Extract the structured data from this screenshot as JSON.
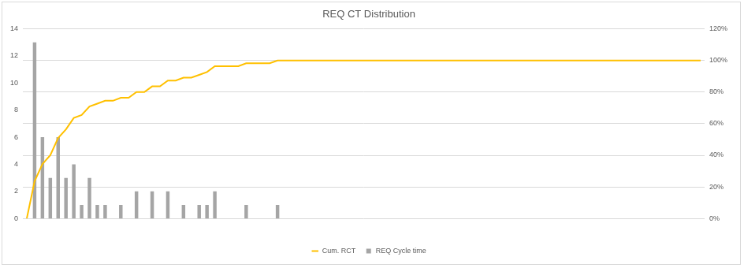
{
  "chart_data": {
    "type": "bar",
    "title": "REQ CT Distribution",
    "categories": [
      null,
      null,
      null,
      null,
      null,
      null,
      null,
      null,
      null,
      null,
      null,
      null,
      null,
      null,
      null,
      null,
      null,
      null,
      null,
      null,
      null,
      null,
      null,
      null,
      null,
      null,
      null,
      null,
      null,
      null,
      null,
      null,
      null,
      null,
      null,
      null,
      null,
      null,
      null,
      null,
      null,
      null,
      null,
      null,
      null,
      null,
      null,
      null,
      null,
      null,
      null,
      null,
      null,
      null,
      null,
      null,
      null,
      null,
      null,
      null,
      null,
      null,
      null,
      null,
      null,
      null,
      null,
      null,
      null,
      null,
      null,
      null,
      null,
      null,
      null,
      null,
      null,
      null,
      null,
      null,
      null,
      null,
      null,
      null,
      null,
      null,
      null
    ],
    "series": [
      {
        "name": "REQ Cycle time",
        "type": "bar",
        "color": "#a5a5a5",
        "values": [
          0,
          13,
          6,
          3,
          6,
          3,
          4,
          1,
          3,
          1,
          1,
          0,
          1,
          0,
          2,
          0,
          2,
          0,
          2,
          0,
          1,
          0,
          1,
          1,
          2,
          0,
          0,
          0,
          1,
          0,
          0,
          0,
          1,
          0,
          0,
          0,
          0,
          0,
          0,
          0,
          0,
          0,
          0,
          0,
          0,
          0,
          0,
          0,
          0,
          0,
          0,
          0,
          0,
          0,
          0,
          0,
          0,
          0,
          0,
          0,
          0,
          0,
          0,
          0,
          0,
          0,
          0,
          0,
          0,
          0,
          0,
          0,
          0,
          0,
          0,
          0,
          0,
          0,
          0,
          0,
          0,
          0,
          0,
          0,
          0,
          0,
          0
        ]
      },
      {
        "name": "Cum. RCT",
        "type": "line",
        "axis": "y2",
        "color": "#ffc000",
        "values": [
          0,
          23.6,
          34.5,
          40,
          50.9,
          56.4,
          63.6,
          65.5,
          70.9,
          72.7,
          74.5,
          74.5,
          76.4,
          76.4,
          80,
          80,
          83.6,
          83.6,
          87.3,
          87.3,
          89.1,
          89.1,
          90.9,
          92.7,
          96.4,
          96.4,
          96.4,
          96.4,
          98.2,
          98.2,
          98.2,
          98.2,
          100,
          100,
          100,
          100,
          100,
          100,
          100,
          100,
          100,
          100,
          100,
          100,
          100,
          100,
          100,
          100,
          100,
          100,
          100,
          100,
          100,
          100,
          100,
          100,
          100,
          100,
          100,
          100,
          100,
          100,
          100,
          100,
          100,
          100,
          100,
          100,
          100,
          100,
          100,
          100,
          100,
          100,
          100,
          100,
          100,
          100,
          100,
          100,
          100,
          100,
          100,
          100,
          100,
          100,
          100
        ]
      }
    ],
    "ylim": [
      0,
      14
    ],
    "yticks": [
      0,
      2,
      4,
      6,
      8,
      10,
      12,
      14
    ],
    "y2lim": [
      0,
      120
    ],
    "y2ticks": [
      {
        "value": 0,
        "label": "0%"
      },
      {
        "value": 20,
        "label": "20%"
      },
      {
        "value": 40,
        "label": "40%"
      },
      {
        "value": 60,
        "label": "60%"
      },
      {
        "value": 80,
        "label": "80%"
      },
      {
        "value": 100,
        "label": "100%"
      },
      {
        "value": 120,
        "label": "120%"
      }
    ],
    "grid": true,
    "legend": "bottom"
  }
}
